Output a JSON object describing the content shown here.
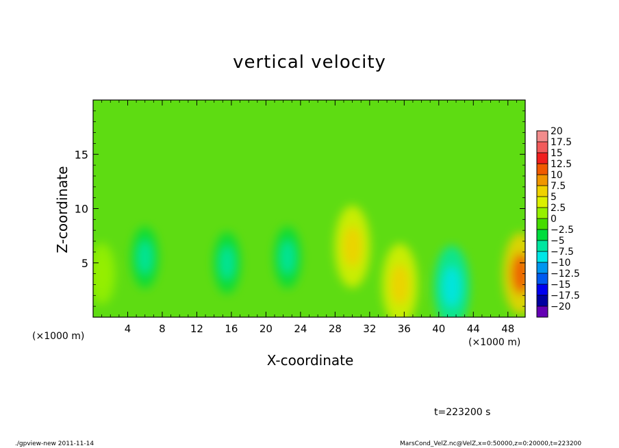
{
  "chart_data": {
    "type": "heatmap",
    "title": "vertical velocity",
    "xlabel": "X-coordinate",
    "ylabel": "Z-coordinate",
    "x_unit_label": "(×1000 m)",
    "x_ticks": [
      4,
      8,
      12,
      16,
      20,
      24,
      28,
      32,
      36,
      40,
      44,
      48
    ],
    "y_ticks": [
      5,
      10,
      15
    ],
    "xlim": [
      0,
      50
    ],
    "ylim": [
      0,
      20
    ],
    "colorbar": {
      "labels": [
        "20",
        "17.5",
        "15",
        "12.5",
        "10",
        "7.5",
        "5",
        "2.5",
        "0",
        "−2.5",
        "−5",
        "−7.5",
        "−10",
        "−12.5",
        "−15",
        "−17.5",
        "−20"
      ],
      "values": [
        20,
        17.5,
        15,
        12.5,
        10,
        7.5,
        5,
        2.5,
        0,
        -2.5,
        -5,
        -7.5,
        -10,
        -12.5,
        -15,
        -17.5,
        -20
      ],
      "colors": [
        "#f28c8c",
        "#f25a5a",
        "#f01e1e",
        "#f05a00",
        "#f09600",
        "#f0d200",
        "#dcf000",
        "#96f000",
        "#46dc00",
        "#00dc3c",
        "#00e6a0",
        "#00e6e6",
        "#0096f0",
        "#005af0",
        "#0000f0",
        "#0000a0",
        "#6400b4"
      ]
    },
    "features": [
      {
        "x": 6,
        "z": 5.5,
        "value": -5
      },
      {
        "x": 15.5,
        "z": 5,
        "value": -4
      },
      {
        "x": 22.5,
        "z": 5.5,
        "value": -5.5
      },
      {
        "x": 30,
        "z": 6.5,
        "value": 7.5
      },
      {
        "x": 35.5,
        "z": 3,
        "value": 7.5
      },
      {
        "x": 41.5,
        "z": 2.8,
        "value": -8
      },
      {
        "x": 49.5,
        "z": 4,
        "value": 12.5
      },
      {
        "x": 1,
        "z": 4,
        "value": 3
      }
    ]
  },
  "time_label": "t=223200 s",
  "footer_left": "./gpview-new  2011-11-14",
  "footer_right": "MarsCond_VelZ.nc@VelZ,x=0:50000,z=0:20000,t=223200"
}
